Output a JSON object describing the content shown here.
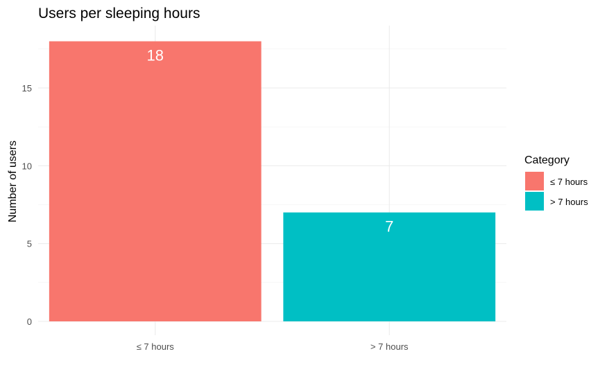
{
  "chart_data": {
    "type": "bar",
    "title": "Users per sleeping hours",
    "xlabel": "",
    "ylabel": "Number of users",
    "categories": [
      "≤ 7 hours",
      "> 7 hours"
    ],
    "values": [
      18,
      7
    ],
    "colors": [
      "#F8766D",
      "#00BFC4"
    ],
    "ylim": [
      0,
      18.9
    ],
    "yticks": [
      0,
      5,
      10,
      15
    ],
    "grid": true,
    "data_labels": true,
    "legend": {
      "title": "Category",
      "placement": "right",
      "items": [
        {
          "label": "≤ 7 hours",
          "color": "#F8766D"
        },
        {
          "label": "> 7 hours",
          "color": "#00BFC4"
        }
      ]
    }
  }
}
